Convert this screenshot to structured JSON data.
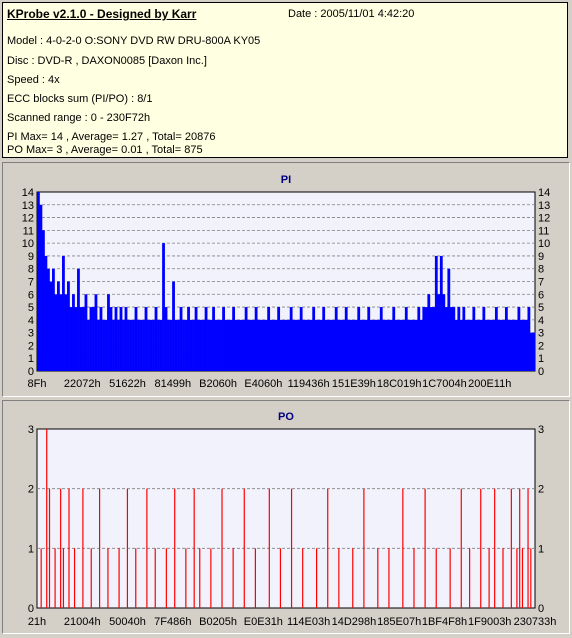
{
  "header": {
    "title": "KProbe v2.1.0 - Designed by Karr",
    "date": "Date : 2005/11/01 4:42:20",
    "lines": [
      "Model : 4-0-2-0 O:SONY    DVD RW DRU-800A  KY05",
      "Disc : DVD-R , DAXON0085 [Daxon Inc.]",
      "Speed : 4x",
      "ECC blocks sum (PI/PO) : 8/1",
      "Scanned range : 0 - 230F72h",
      "PI Max= 14 , Average= 1.27 , Total= 20876",
      "PO Max= 3 , Average= 0.01 , Total= 875"
    ]
  },
  "colors": {
    "pi": "#0000ff",
    "po": "#ff0000",
    "plot_bg": "#f2f2fc",
    "title": "#000080"
  },
  "chart_data": [
    {
      "type": "bar",
      "title": "PI",
      "ylim": [
        0,
        14
      ],
      "yticks": [
        0,
        1,
        2,
        3,
        4,
        5,
        6,
        7,
        8,
        9,
        10,
        11,
        12,
        13,
        14
      ],
      "xticks": [
        "8Fh",
        "22072h",
        "51622h",
        "81499h",
        "B2060h",
        "E4060h",
        "119436h",
        "151E39h",
        "18C019h",
        "1C7004h",
        "200E11h"
      ],
      "x_range": [
        "0h",
        "230F72h"
      ],
      "grid": true,
      "series": [
        {
          "values": [
            14,
            13,
            11,
            9,
            8,
            7,
            8,
            6,
            7,
            6,
            9,
            6,
            7,
            5,
            6,
            5,
            8,
            5,
            5,
            6,
            4,
            5,
            5,
            6,
            4,
            5,
            4,
            4,
            6,
            5,
            4,
            5,
            4,
            5,
            4,
            5,
            4,
            4,
            4,
            5,
            4,
            4,
            4,
            5,
            4,
            4,
            4,
            5,
            4,
            4,
            10,
            5,
            4,
            4,
            7,
            4,
            4,
            5,
            4,
            4,
            5,
            4,
            4,
            5,
            4,
            4,
            4,
            5,
            4,
            4,
            5,
            4,
            4,
            4,
            5,
            4,
            4,
            4,
            5,
            4,
            4,
            4,
            4,
            5,
            4,
            4,
            4,
            5,
            4,
            4,
            4,
            4,
            5,
            4,
            4,
            4,
            5,
            4,
            4,
            4,
            4,
            5,
            4,
            4,
            4,
            5,
            4,
            4,
            4,
            4,
            5,
            4,
            4,
            4,
            5,
            4,
            4,
            4,
            4,
            5,
            4,
            4,
            4,
            5,
            4,
            4,
            4,
            4,
            5,
            4,
            4,
            4,
            5,
            4,
            4,
            4,
            4,
            5,
            4,
            4,
            4,
            4,
            5,
            4,
            4,
            4,
            4,
            5,
            4,
            4,
            4,
            4,
            5,
            4,
            5,
            5,
            6,
            5,
            5,
            9,
            6,
            9,
            6,
            5,
            8,
            5,
            5,
            4,
            5,
            4,
            5,
            4,
            4,
            4,
            5,
            4,
            4,
            4,
            5,
            4,
            4,
            4,
            4,
            5,
            4,
            4,
            4,
            5,
            4,
            4,
            4,
            4,
            5,
            4,
            4,
            4,
            5,
            3,
            3
          ]
        }
      ]
    },
    {
      "type": "bar",
      "title": "PO",
      "ylim": [
        0,
        3
      ],
      "yticks": [
        0,
        1,
        2,
        3
      ],
      "xticks": [
        "21h",
        "21004h",
        "50040h",
        "7F486h",
        "B0205h",
        "E0E31h",
        "114E03h",
        "14D298h",
        "185E07h",
        "1BF4F8h",
        "1F9003h",
        "230733h"
      ],
      "x_range": [
        "0h",
        "230F72h"
      ],
      "grid": true,
      "series": [
        {
          "values": [
            0,
            1,
            0,
            3,
            2,
            0,
            1,
            0,
            2,
            1,
            0,
            2,
            0,
            1,
            0,
            0,
            2,
            0,
            0,
            1,
            0,
            0,
            2,
            0,
            0,
            1,
            0,
            0,
            0,
            1,
            0,
            0,
            2,
            0,
            0,
            1,
            0,
            0,
            0,
            2,
            0,
            0,
            1,
            0,
            0,
            0,
            1,
            0,
            0,
            2,
            0,
            0,
            0,
            1,
            0,
            0,
            2,
            0,
            1,
            0,
            0,
            0,
            1,
            0,
            0,
            0,
            2,
            0,
            0,
            0,
            1,
            0,
            0,
            0,
            2,
            0,
            0,
            0,
            1,
            0,
            0,
            0,
            0,
            2,
            0,
            0,
            0,
            1,
            0,
            0,
            0,
            2,
            0,
            0,
            0,
            1,
            0,
            0,
            0,
            0,
            1,
            0,
            0,
            0,
            2,
            0,
            0,
            0,
            1,
            0,
            0,
            0,
            0,
            1,
            0,
            0,
            0,
            2,
            0,
            0,
            0,
            0,
            1,
            0,
            0,
            0,
            1,
            0,
            0,
            0,
            0,
            2,
            0,
            0,
            0,
            1,
            0,
            0,
            0,
            2,
            0,
            0,
            0,
            1,
            0,
            0,
            0,
            0,
            1,
            0,
            0,
            0,
            2,
            0,
            0,
            1,
            0,
            0,
            0,
            2,
            0,
            0,
            1,
            0,
            2,
            0,
            0,
            1,
            0,
            0,
            2,
            0,
            1,
            2,
            1,
            0,
            2,
            1,
            0
          ]
        }
      ]
    }
  ]
}
